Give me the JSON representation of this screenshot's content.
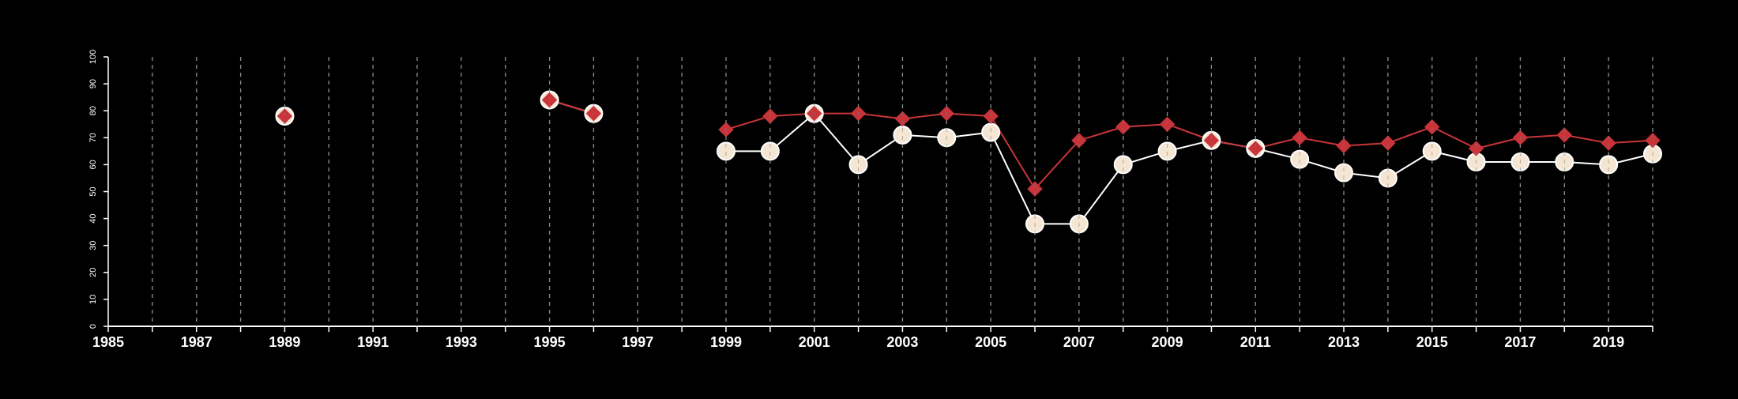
{
  "chart_data": {
    "type": "line",
    "title": "",
    "xlabel": "",
    "ylabel": "",
    "xlim": [
      1985,
      2020
    ],
    "ylim": [
      0,
      100
    ],
    "y_ticks": [
      0,
      10,
      20,
      30,
      40,
      50,
      60,
      70,
      80,
      90,
      100
    ],
    "x_tick_labels": [
      1985,
      1987,
      1989,
      1991,
      1993,
      1995,
      1997,
      1999,
      2001,
      2003,
      2005,
      2007,
      2009,
      2011,
      2013,
      2015,
      2017,
      2019
    ],
    "grid": "vertical dashed lines at every year",
    "legend": "none",
    "series": [
      {
        "marker": "diamond",
        "color": "#c9343a",
        "points": [
          [
            1989,
            78
          ],
          [
            1995,
            84
          ],
          [
            1996,
            79
          ],
          [
            1999,
            73
          ],
          [
            2000,
            78
          ],
          [
            2001,
            79
          ],
          [
            2002,
            79
          ],
          [
            2003,
            77
          ],
          [
            2004,
            79
          ],
          [
            2005,
            78
          ],
          [
            2006,
            51
          ],
          [
            2007,
            69
          ],
          [
            2008,
            74
          ],
          [
            2009,
            75
          ],
          [
            2010,
            69
          ],
          [
            2011,
            66
          ],
          [
            2012,
            70
          ],
          [
            2013,
            67
          ],
          [
            2014,
            68
          ],
          [
            2015,
            74
          ],
          [
            2016,
            66
          ],
          [
            2017,
            70
          ],
          [
            2018,
            71
          ],
          [
            2019,
            68
          ],
          [
            2020,
            69
          ]
        ]
      },
      {
        "marker": "circle",
        "color": "#ffffff",
        "fill": "#f5e6d3",
        "points": [
          [
            1989,
            78
          ],
          [
            1995,
            84
          ],
          [
            1996,
            79
          ],
          [
            1999,
            65
          ],
          [
            2000,
            65
          ],
          [
            2001,
            79
          ],
          [
            2002,
            60
          ],
          [
            2003,
            71
          ],
          [
            2004,
            70
          ],
          [
            2005,
            72
          ],
          [
            2006,
            38
          ],
          [
            2007,
            38
          ],
          [
            2008,
            60
          ],
          [
            2009,
            65
          ],
          [
            2010,
            69
          ],
          [
            2011,
            66
          ],
          [
            2012,
            62
          ],
          [
            2013,
            57
          ],
          [
            2014,
            55
          ],
          [
            2015,
            65
          ],
          [
            2016,
            61
          ],
          [
            2017,
            61
          ],
          [
            2018,
            61
          ],
          [
            2019,
            60
          ],
          [
            2020,
            64
          ]
        ]
      }
    ]
  }
}
